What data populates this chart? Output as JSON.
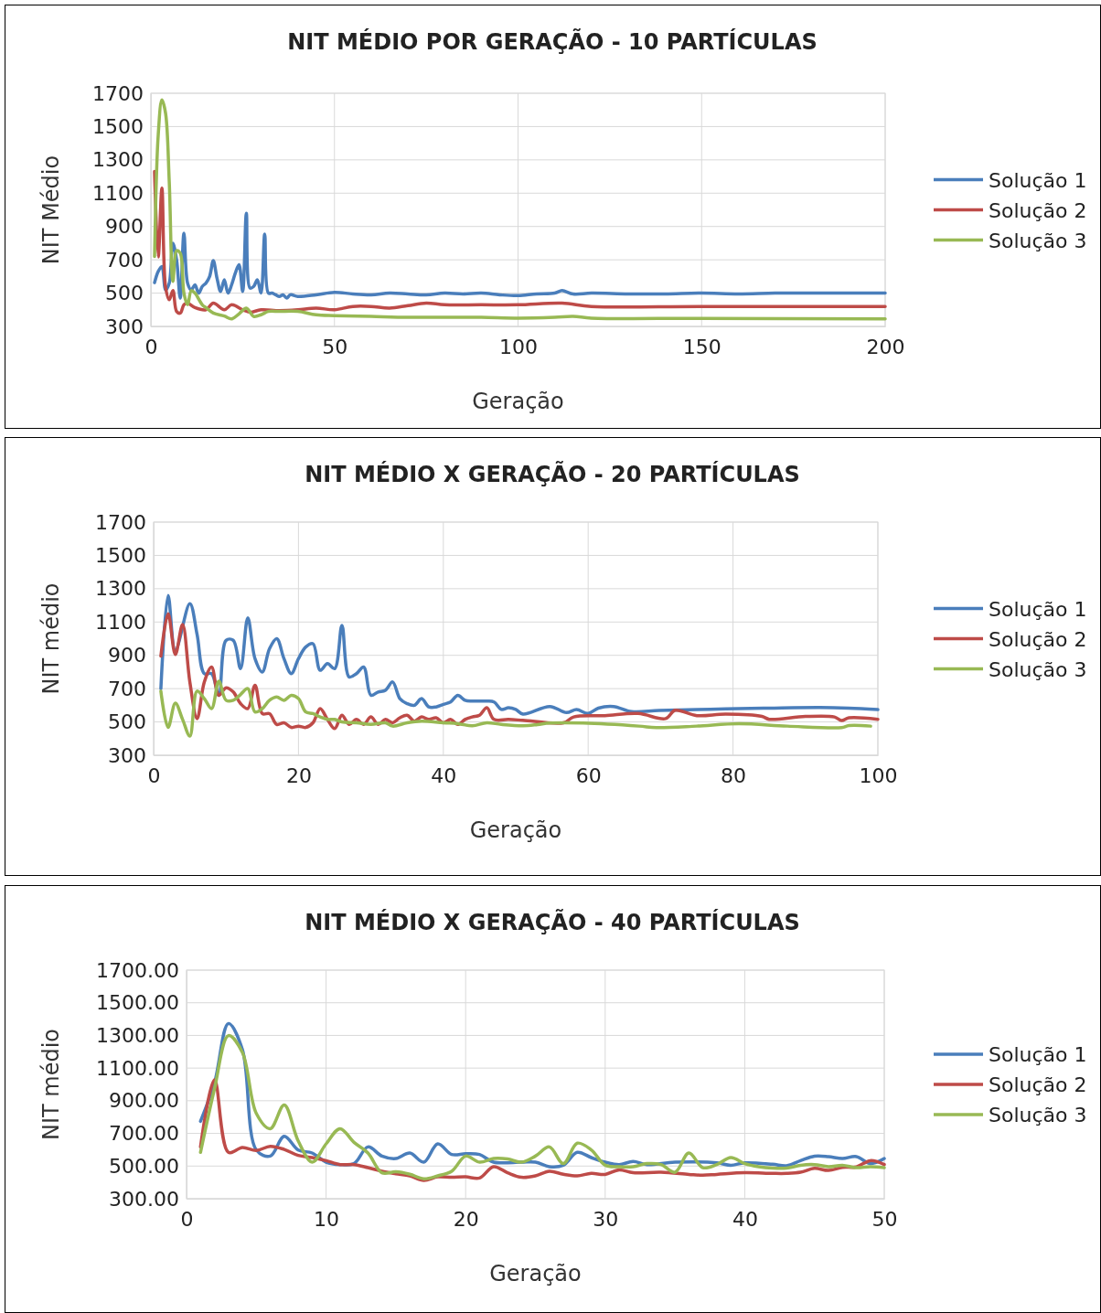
{
  "chart_data": [
    {
      "type": "line",
      "title": "NIT MÉDIO POR GERAÇÃO - 10 PARTÍCULAS",
      "xlabel": "Geração",
      "ylabel": "NIT Médio",
      "xlim": [
        0,
        200
      ],
      "xticks": [
        0,
        50,
        100,
        150,
        200
      ],
      "ylim": [
        300,
        1700
      ],
      "yticks": [
        300,
        500,
        700,
        900,
        1100,
        1300,
        1500,
        1700
      ],
      "grid": true,
      "legend": "right",
      "line_style": "solid",
      "marker": "none",
      "series": [
        {
          "name": "Solução 1",
          "color": "#4a7ebb",
          "x": [
            1,
            2,
            3,
            4,
            5,
            6,
            7,
            8,
            9,
            10,
            11,
            12,
            13,
            14,
            15,
            16,
            17,
            18,
            19,
            20,
            21,
            22,
            23,
            24,
            25,
            26,
            27,
            28,
            29,
            30,
            31,
            32,
            33,
            34,
            35,
            36,
            37,
            38,
            40,
            45,
            50,
            55,
            60,
            65,
            70,
            75,
            80,
            85,
            90,
            95,
            100,
            105,
            110,
            112,
            115,
            120,
            130,
            140,
            150,
            160,
            170,
            180,
            190,
            200
          ],
          "values": [
            563,
            630,
            660,
            520,
            560,
            800,
            700,
            470,
            860,
            560,
            520,
            550,
            500,
            540,
            560,
            600,
            695,
            590,
            510,
            580,
            500,
            550,
            620,
            670,
            510,
            980,
            530,
            540,
            580,
            500,
            855,
            500,
            500,
            490,
            480,
            490,
            470,
            490,
            480,
            490,
            505,
            495,
            490,
            500,
            495,
            490,
            500,
            495,
            500,
            490,
            485,
            495,
            500,
            515,
            495,
            500,
            495,
            495,
            500,
            495,
            500,
            500,
            500,
            500
          ]
        },
        {
          "name": "Solução 2",
          "color": "#be4b48",
          "x": [
            1,
            2,
            3,
            4,
            5,
            6,
            7,
            8,
            9,
            10,
            12,
            15,
            17,
            20,
            22,
            25,
            27,
            30,
            35,
            40,
            45,
            50,
            55,
            60,
            65,
            70,
            75,
            80,
            90,
            100,
            112,
            120,
            150,
            200
          ],
          "values": [
            1230,
            717,
            1130,
            536,
            460,
            515,
            390,
            380,
            430,
            440,
            413,
            400,
            440,
            400,
            430,
            400,
            385,
            400,
            395,
            400,
            410,
            400,
            420,
            420,
            410,
            425,
            440,
            430,
            430,
            430,
            440,
            420,
            420,
            420
          ]
        },
        {
          "name": "Solução 3",
          "color": "#98b954",
          "x": [
            1,
            2,
            3,
            4,
            5,
            6,
            7,
            8,
            9,
            10,
            11,
            12,
            14,
            15,
            17,
            20,
            22,
            24,
            26,
            28,
            30,
            32,
            35,
            40,
            45,
            50,
            60,
            70,
            80,
            90,
            100,
            110,
            115,
            120,
            150,
            200
          ],
          "values": [
            720,
            1450,
            1660,
            1580,
            1170,
            570,
            755,
            740,
            500,
            430,
            515,
            500,
            430,
            413,
            380,
            362,
            345,
            375,
            410,
            360,
            370,
            390,
            390,
            390,
            370,
            365,
            360,
            355,
            355,
            355,
            350,
            355,
            360,
            350,
            348,
            345
          ]
        }
      ]
    },
    {
      "type": "line",
      "title": "NIT MÉDIO X GERAÇÃO - 20 PARTÍCULAS",
      "xlabel": "Geração",
      "ylabel": "NIT médio",
      "xlim": [
        0,
        100
      ],
      "xticks": [
        0,
        20,
        40,
        60,
        80,
        100
      ],
      "ylim": [
        300,
        1700
      ],
      "yticks": [
        300,
        500,
        700,
        900,
        1100,
        1300,
        1500,
        1700
      ],
      "grid": true,
      "legend": "right",
      "line_style": "solid",
      "marker": "none",
      "series": [
        {
          "name": "Solução 1",
          "color": "#4a7ebb",
          "x": [
            1,
            2,
            3,
            5,
            6,
            7,
            8,
            9,
            10,
            11,
            12,
            13,
            14,
            15,
            16,
            17,
            18,
            19,
            20,
            21,
            22,
            23,
            24,
            25,
            26,
            27,
            28,
            29,
            30,
            31,
            32,
            33,
            34,
            35,
            36,
            37,
            38,
            39,
            40,
            41,
            42,
            43,
            44,
            46,
            47,
            48,
            49,
            50,
            51,
            54.7,
            57,
            58.4,
            60,
            61.4,
            63.5,
            66,
            69.8,
            75,
            79,
            85,
            92,
            96,
            100
          ],
          "values": [
            700,
            1260,
            930,
            1210,
            1025,
            790,
            790,
            660,
            990,
            990,
            820,
            1125,
            880,
            800,
            940,
            1000,
            880,
            790,
            880,
            950,
            970,
            810,
            850,
            820,
            1080,
            770,
            790,
            830,
            660,
            680,
            690,
            740,
            640,
            610,
            600,
            640,
            590,
            590,
            605,
            620,
            660,
            630,
            625,
            625,
            620,
            575,
            585,
            575,
            547,
            593,
            556,
            574,
            551,
            583,
            593,
            562,
            569,
            574,
            578,
            583,
            587,
            583,
            574
          ]
        },
        {
          "name": "Solução 2",
          "color": "#be4b48",
          "x": [
            1,
            2,
            3,
            4,
            5,
            6,
            7,
            8,
            9,
            10,
            11,
            12,
            13,
            14,
            15,
            16,
            17,
            18,
            19,
            20,
            21,
            22,
            23,
            24,
            25,
            26,
            27,
            28,
            29,
            30,
            31,
            32,
            33,
            34,
            35,
            36,
            37,
            38,
            39,
            40,
            41,
            42,
            43,
            44,
            45,
            46,
            47,
            49,
            51,
            56.6,
            58,
            62.3,
            66.9,
            70.7,
            72,
            75,
            79,
            84,
            85,
            90,
            94,
            95,
            96,
            100
          ],
          "values": [
            895,
            1150,
            905,
            1085,
            740,
            520,
            740,
            830,
            660,
            705,
            680,
            610,
            580,
            720,
            550,
            550,
            485,
            495,
            467,
            475,
            467,
            495,
            580,
            515,
            460,
            540,
            485,
            515,
            485,
            530,
            485,
            515,
            495,
            525,
            540,
            505,
            530,
            515,
            525,
            495,
            515,
            485,
            515,
            530,
            540,
            585,
            515,
            515,
            510,
            495,
            530,
            538,
            551,
            520,
            570,
            538,
            547,
            533,
            516,
            533,
            530,
            508,
            525,
            516
          ]
        },
        {
          "name": "Solução 3",
          "color": "#98b954",
          "x": [
            1,
            2,
            3,
            4,
            5,
            6,
            7,
            8,
            9,
            10,
            11,
            12,
            13,
            14,
            15,
            16,
            17,
            18,
            19,
            20,
            21,
            22,
            23,
            24,
            25,
            26,
            28,
            30,
            32,
            33,
            35,
            37,
            40,
            42,
            44,
            46,
            48,
            51,
            53,
            54.7,
            59.3,
            67,
            69.4,
            75,
            80.8,
            87.5,
            95,
            96,
            99
          ],
          "values": [
            685,
            467,
            613,
            515,
            415,
            685,
            640,
            580,
            745,
            630,
            630,
            665,
            700,
            560,
            580,
            630,
            650,
            630,
            660,
            640,
            560,
            550,
            530,
            515,
            515,
            500,
            495,
            485,
            495,
            475,
            495,
            505,
            495,
            490,
            477,
            495,
            485,
            477,
            484,
            493,
            493,
            475,
            466,
            475,
            489,
            475,
            466,
            478,
            475
          ]
        }
      ]
    },
    {
      "type": "line",
      "title": "NIT MÉDIO X GERAÇÃO - 40 PARTÍCULAS",
      "xlabel": "Geração",
      "ylabel": "NIT médio",
      "xlim": [
        0,
        50
      ],
      "xticks": [
        0,
        10,
        20,
        30,
        40,
        50
      ],
      "ylim": [
        300,
        1700
      ],
      "yticks": [
        {
          "value": 300,
          "label": "300.00"
        },
        {
          "value": 500,
          "label": "500.00"
        },
        {
          "value": 700,
          "label": "700.00"
        },
        {
          "value": 900,
          "label": "900.00"
        },
        {
          "value": 1100,
          "label": "1100.00"
        },
        {
          "value": 1300,
          "label": "1300.00"
        },
        {
          "value": 1500,
          "label": "1500.00"
        },
        {
          "value": 1700,
          "label": "1700.00"
        }
      ],
      "grid": true,
      "legend": "right",
      "line_style": "solid",
      "marker": "none",
      "series": [
        {
          "name": "Solução 1",
          "color": "#4a7ebb",
          "x": [
            1,
            2,
            3,
            4,
            5,
            6,
            7,
            8,
            9,
            10,
            11,
            12,
            13,
            14,
            15,
            16,
            17,
            18,
            19,
            20,
            21,
            22,
            24,
            25,
            26,
            27,
            28,
            29,
            30,
            31,
            32,
            33,
            35,
            38,
            39,
            40,
            42,
            43,
            44,
            45,
            46,
            47,
            48,
            49,
            50
          ],
          "values": [
            774,
            1008,
            1373,
            1214,
            598,
            561,
            682,
            598,
            580,
            524,
            509,
            515,
            617,
            561,
            546,
            580,
            524,
            636,
            571,
            576,
            571,
            524,
            524,
            524,
            496,
            505,
            584,
            552,
            524,
            509,
            528,
            509,
            524,
            520,
            505,
            520,
            511,
            502,
            533,
            561,
            558,
            546,
            558,
            515,
            546
          ]
        },
        {
          "name": "Solução 2",
          "color": "#be4b48",
          "x": [
            1,
            2,
            3,
            4,
            5,
            6,
            7,
            8,
            9,
            10,
            11,
            12,
            13,
            14,
            15,
            16,
            17,
            18,
            19,
            20,
            21,
            22,
            23,
            24,
            25,
            26,
            27,
            28,
            29,
            30,
            31,
            32,
            34,
            36,
            37,
            38,
            40,
            42,
            43,
            44,
            45,
            46,
            47,
            48,
            49,
            50
          ],
          "values": [
            617,
            1028,
            584,
            614,
            595,
            621,
            602,
            565,
            552,
            533,
            509,
            509,
            490,
            468,
            453,
            440,
            412,
            434,
            431,
            434,
            427,
            496,
            459,
            431,
            440,
            468,
            450,
            440,
            455,
            449,
            477,
            459,
            462,
            449,
            444,
            449,
            459,
            455,
            455,
            462,
            486,
            473,
            492,
            495,
            533,
            509
          ]
        },
        {
          "name": "Solução 3",
          "color": "#98b954",
          "x": [
            1,
            2,
            3,
            4,
            5,
            6,
            7,
            8,
            9,
            10,
            11,
            12,
            13,
            14,
            15,
            16,
            17,
            18,
            19,
            20,
            21,
            22,
            23,
            24,
            25,
            26,
            27,
            28,
            29,
            30,
            31,
            32,
            33,
            34,
            35,
            36,
            37,
            38,
            39,
            40,
            41,
            42,
            43,
            44,
            45,
            46,
            47,
            48,
            49,
            50
          ],
          "values": [
            584,
            972,
            1299,
            1196,
            822,
            729,
            874,
            654,
            524,
            636,
            729,
            645,
            580,
            459,
            465,
            450,
            422,
            440,
            468,
            561,
            524,
            546,
            543,
            524,
            561,
            617,
            515,
            640,
            599,
            505,
            496,
            496,
            515,
            509,
            462,
            580,
            490,
            509,
            552,
            515,
            496,
            487,
            487,
            505,
            509,
            496,
            505,
            490,
            496,
            490
          ]
        }
      ]
    }
  ]
}
